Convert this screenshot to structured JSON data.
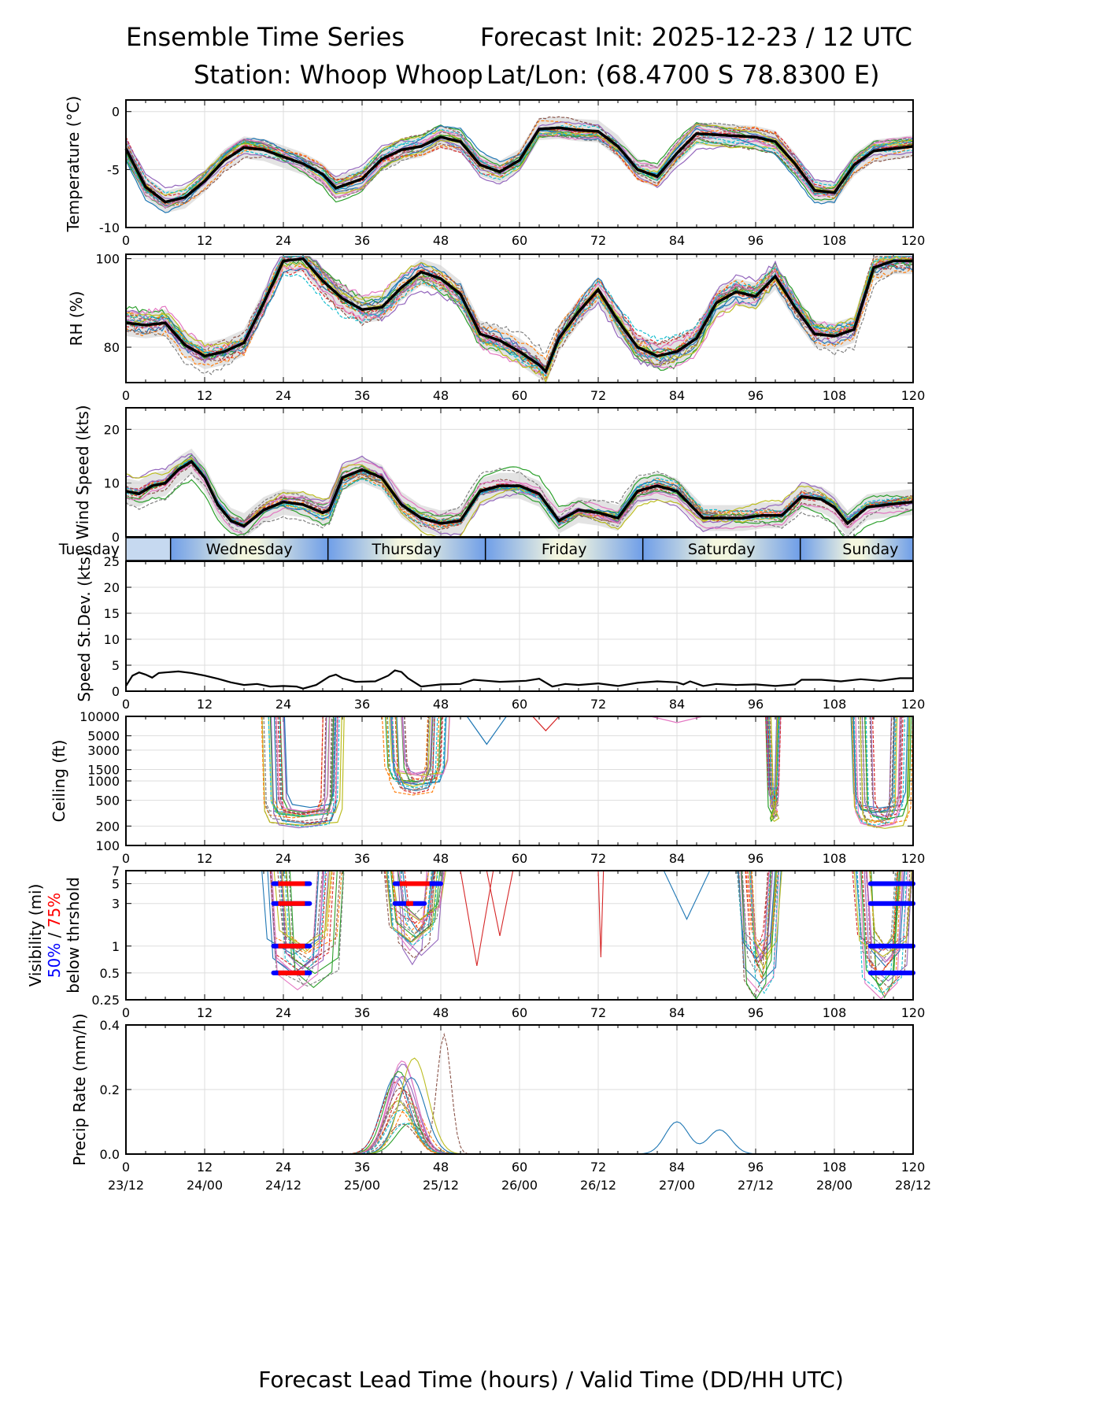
{
  "header": {
    "title_left": "Ensemble Time Series",
    "title_right": "Forecast Init: 2025-12-23 / 12 UTC",
    "station": "Station: Whoop Whoop",
    "latlon": "Lat/Lon: (68.4700 S 78.8300 E)"
  },
  "x_axis": {
    "ticks": [
      0,
      12,
      24,
      36,
      48,
      60,
      72,
      84,
      96,
      108,
      120
    ],
    "valid_times": [
      "23/12",
      "24/00",
      "24/12",
      "25/00",
      "25/12",
      "26/00",
      "26/12",
      "27/00",
      "27/12",
      "28/00",
      "28/12"
    ],
    "label": "Forecast Lead Time (hours) / Valid Time (DD/HH UTC)"
  },
  "day_band": {
    "labels": [
      "Tuesday",
      "Wednesday",
      "Thursday",
      "Friday",
      "Saturday",
      "Sunday"
    ],
    "boundaries_hours": [
      6.8,
      30.8,
      54.8,
      78.8,
      102.8
    ],
    "color_blue": "#6f9ee8",
    "color_light": "#f3f6df"
  },
  "chart_data": [
    {
      "type": "line",
      "name": "temperature",
      "ylabel": "Temperature (°C)",
      "ylim": [
        -10,
        1
      ],
      "yticks": [
        0,
        -5,
        -10
      ],
      "mean_series": {
        "name": "ensemble mean",
        "x": [
          0,
          3,
          6,
          9,
          12,
          15,
          18,
          21,
          24,
          27,
          30,
          32,
          34,
          36,
          39,
          42,
          45,
          48,
          51,
          54,
          57,
          60,
          63,
          66,
          69,
          72,
          75,
          78,
          81,
          84,
          87,
          90,
          93,
          96,
          99,
          102,
          105,
          108,
          111,
          114,
          117,
          120
        ],
        "values": [
          -3.2,
          -6.5,
          -7.8,
          -7.4,
          -6.0,
          -4.2,
          -3.1,
          -3.3,
          -3.9,
          -4.5,
          -5.4,
          -6.6,
          -6.2,
          -5.8,
          -4.1,
          -3.3,
          -3.0,
          -2.2,
          -2.6,
          -4.6,
          -5.2,
          -4.2,
          -1.5,
          -1.4,
          -1.6,
          -1.7,
          -3.0,
          -5.0,
          -5.6,
          -3.6,
          -1.9,
          -2.0,
          -2.1,
          -2.2,
          -2.6,
          -4.5,
          -6.8,
          -7.0,
          -4.6,
          -3.4,
          -3.2,
          -3.0
        ]
      },
      "ensemble_members": 20,
      "spread_shading": true
    },
    {
      "type": "line",
      "name": "relative_humidity",
      "ylabel": "RH (%)",
      "ylim": [
        72,
        101
      ],
      "yticks": [
        80,
        100
      ],
      "mean_series": {
        "name": "ensemble mean",
        "x": [
          0,
          3,
          6,
          9,
          12,
          15,
          18,
          21,
          24,
          27,
          30,
          33,
          36,
          39,
          42,
          45,
          48,
          51,
          54,
          57,
          60,
          63,
          64,
          66,
          69,
          72,
          75,
          78,
          81,
          84,
          87,
          90,
          93,
          96,
          99,
          102,
          105,
          108,
          111,
          114,
          117,
          120
        ],
        "values": [
          85.5,
          85.0,
          85.5,
          80.5,
          78.0,
          79.0,
          81.0,
          90.0,
          99.5,
          100.0,
          95.0,
          91.0,
          88.5,
          89.0,
          93.5,
          97.0,
          95.5,
          92.0,
          83.0,
          81.5,
          79.0,
          76.0,
          74.5,
          82.0,
          88.0,
          93.0,
          86.0,
          80.0,
          78.0,
          79.0,
          82.0,
          90.0,
          92.5,
          91.5,
          96.0,
          89.0,
          83.0,
          82.5,
          84.0,
          98.0,
          99.5,
          99.5
        ]
      },
      "ensemble_members": 20,
      "spread_shading": true
    },
    {
      "type": "line",
      "name": "wind_speed",
      "ylabel": "Wind Speed (kts)",
      "ylim": [
        0,
        24
      ],
      "yticks": [
        0,
        10,
        20
      ],
      "mean_series": {
        "name": "ensemble mean",
        "x": [
          0,
          2,
          4,
          6,
          8,
          10,
          12,
          14,
          16,
          18,
          21,
          24,
          27,
          30,
          31,
          33,
          36,
          39,
          42,
          45,
          48,
          51,
          54,
          57,
          60,
          63,
          66,
          69,
          72,
          75,
          78,
          81,
          84,
          86,
          88,
          91,
          94,
          97,
          100,
          103,
          106,
          108,
          110,
          113,
          116,
          120
        ],
        "values": [
          8.5,
          8.0,
          9.5,
          10.0,
          12.5,
          14.0,
          11.0,
          6.0,
          3.0,
          2.0,
          5.0,
          6.5,
          6.0,
          4.5,
          5.0,
          11.0,
          12.5,
          11.0,
          6.0,
          3.5,
          2.5,
          3.0,
          8.5,
          9.5,
          9.5,
          8.0,
          3.0,
          5.0,
          4.5,
          3.5,
          8.5,
          9.5,
          8.5,
          6.0,
          3.5,
          3.5,
          3.5,
          4.0,
          4.0,
          7.5,
          7.0,
          5.5,
          2.5,
          5.5,
          6.0,
          6.5
        ]
      },
      "ensemble_members": 20,
      "spread_shading": true
    },
    {
      "type": "line",
      "name": "speed_stdev",
      "ylabel": "Speed St.Dev. (kts)",
      "ylim": [
        0,
        25
      ],
      "yticks": [
        0,
        5,
        10,
        15,
        20,
        25
      ],
      "series": [
        {
          "name": "std dev",
          "x": [
            0,
            1,
            2,
            3,
            4,
            5,
            6,
            8,
            10,
            12,
            14,
            16,
            18,
            20,
            22,
            24,
            26,
            27,
            29,
            30,
            31,
            32,
            33,
            35,
            38,
            40,
            41,
            42,
            43,
            45,
            48,
            51,
            53,
            55,
            57,
            59,
            61,
            63,
            65,
            67,
            69,
            72,
            75,
            78,
            81,
            84,
            85,
            86,
            88,
            90,
            93,
            96,
            99,
            102,
            103,
            106,
            109,
            112,
            115,
            118,
            120
          ],
          "values": [
            1.0,
            3.0,
            3.6,
            3.2,
            2.6,
            3.5,
            3.6,
            3.8,
            3.5,
            3.0,
            2.4,
            1.7,
            1.2,
            1.4,
            0.9,
            1.0,
            0.9,
            0.5,
            1.2,
            2.0,
            2.8,
            3.2,
            2.5,
            1.8,
            1.9,
            3.0,
            4.0,
            3.7,
            2.5,
            0.9,
            1.3,
            1.4,
            2.2,
            2.0,
            1.8,
            1.9,
            2.0,
            2.4,
            0.9,
            1.4,
            1.2,
            1.5,
            1.0,
            1.6,
            1.9,
            1.7,
            1.3,
            1.9,
            1.0,
            1.4,
            1.2,
            1.3,
            1.0,
            1.3,
            2.2,
            2.2,
            1.9,
            2.3,
            2.0,
            2.5,
            2.5
          ]
        }
      ]
    },
    {
      "type": "line",
      "name": "ceiling",
      "ylabel": "Ceiling (ft)",
      "yscale": "log",
      "ylim": [
        100,
        10000
      ],
      "yticks": [
        100,
        200,
        500,
        1000,
        1500,
        3000,
        5000,
        10000
      ],
      "events": [
        {
          "start": 20.5,
          "end": 33.5,
          "min_ft": 200
        },
        {
          "start": 39.0,
          "end": 49.5,
          "min_ft": 650
        },
        {
          "start": 97.5,
          "end": 100.0,
          "min_ft": 250
        },
        {
          "start": 110.5,
          "end": 120.0,
          "min_ft": 200
        }
      ],
      "ensemble_members": 20
    },
    {
      "type": "line",
      "name": "visibility",
      "ylabel": "Visibility (mi)",
      "ylabel2_50": "50%",
      "ylabel2_sep": " / ",
      "ylabel2_75": "75%",
      "ylabel3": "below thrshold",
      "yscale": "log",
      "ylim": [
        0.25,
        7
      ],
      "yticks": [
        0.25,
        0.5,
        1,
        3,
        5,
        7
      ],
      "threshold_bars": [
        {
          "level": 5,
          "p50": [
            22.5,
            28.0
          ],
          "p75": [
            22.5,
            28.0
          ]
        },
        {
          "level": 3,
          "p50": [
            22.5,
            28.0
          ],
          "p75": [
            22.5,
            28.0
          ]
        },
        {
          "level": 1,
          "p50": [
            22.5,
            28.0
          ],
          "p75": [
            22.5,
            28.0
          ]
        },
        {
          "level": 0.5,
          "p50": [
            22.5,
            28.0
          ],
          "p75": [
            22.5,
            28.0
          ]
        },
        {
          "level": 5,
          "p50": [
            41.0,
            48.0
          ],
          "p75": [
            41.0,
            47.0
          ]
        },
        {
          "level": 3,
          "p50": [
            41.0,
            45.5
          ],
          "p75": [
            42.0,
            44.5
          ]
        },
        {
          "level": 5,
          "p50": [
            113.5,
            120.0
          ],
          "p75": null
        },
        {
          "level": 3,
          "p50": [
            113.5,
            120.0
          ],
          "p75": null
        },
        {
          "level": 1,
          "p50": [
            113.5,
            120.0
          ],
          "p75": null
        },
        {
          "level": 0.5,
          "p50": [
            113.5,
            120.0
          ],
          "p75": null
        }
      ],
      "ensemble_members": 20
    },
    {
      "type": "line",
      "name": "precip_rate",
      "ylabel": "Precip Rate (mm/h)",
      "ylim": [
        0,
        0.4
      ],
      "yticks": [
        0.0,
        0.2,
        0.4
      ],
      "ytick_labels": [
        "0.0",
        "0.2",
        "0.4"
      ],
      "peaks": [
        {
          "center": 42.5,
          "peak": 0.31,
          "width": 3.0
        },
        {
          "center": 48.5,
          "peak": 0.37,
          "width": 1.5
        },
        {
          "center": 84.0,
          "peak": 0.1,
          "width": 2.5
        },
        {
          "center": 90.5,
          "peak": 0.075,
          "width": 2.5
        }
      ],
      "ensemble_members": 20
    }
  ]
}
